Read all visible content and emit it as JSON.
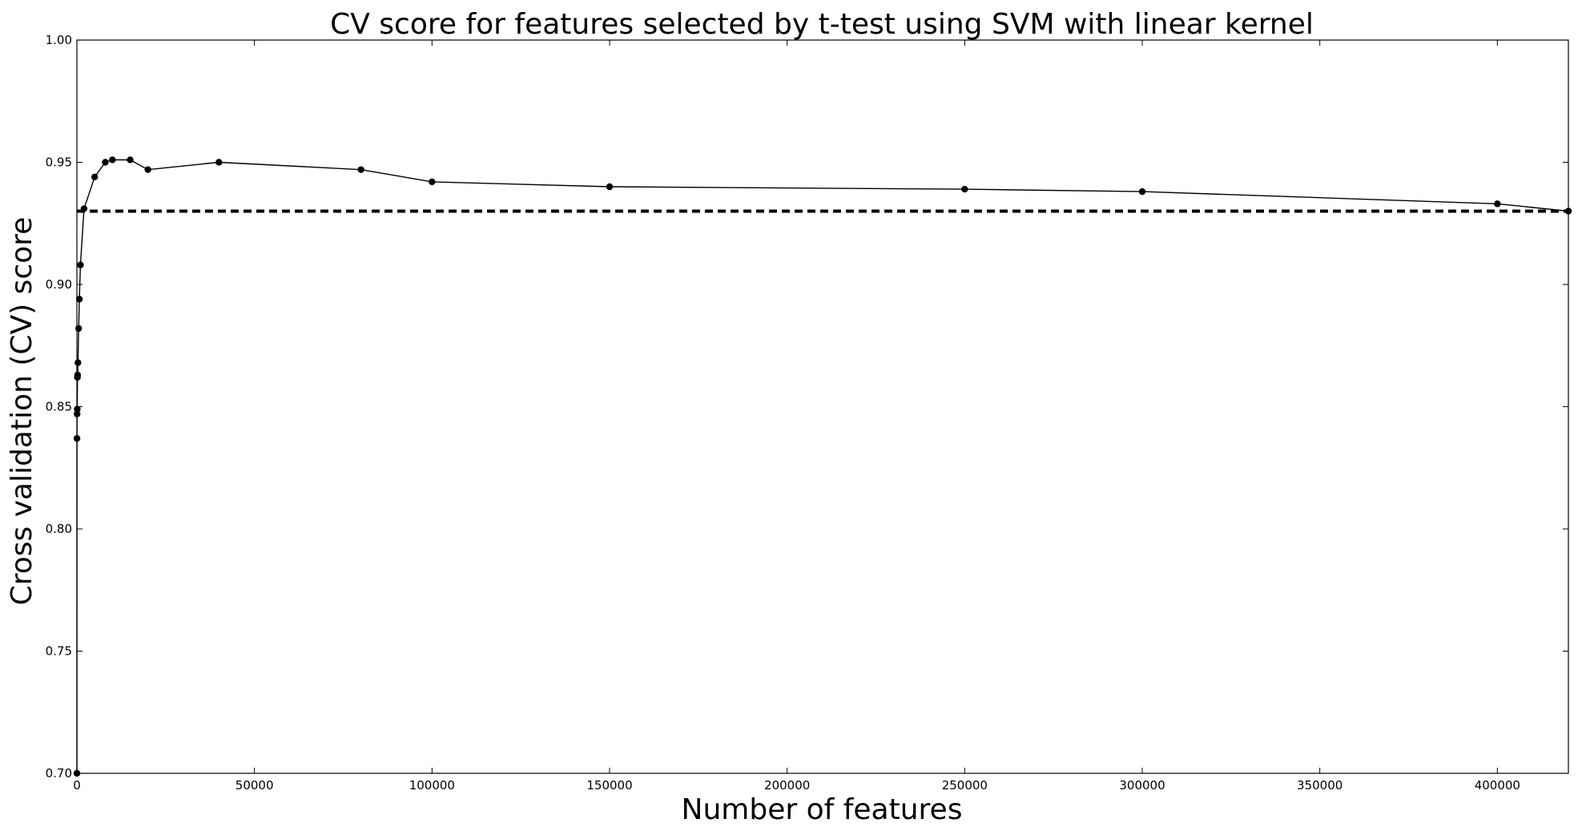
{
  "chart_data": {
    "type": "line",
    "title": "CV score for features selected by t-test using SVM with linear kernel",
    "xlabel": "Number of features",
    "ylabel": "Cross validation (CV) score",
    "xlim": [
      0,
      420000
    ],
    "ylim": [
      0.7,
      1.0
    ],
    "x_ticks": [
      0,
      50000,
      100000,
      150000,
      200000,
      250000,
      300000,
      350000,
      400000
    ],
    "x_tick_labels": [
      "0",
      "50000",
      "100000",
      "150000",
      "200000",
      "250000",
      "300000",
      "350000",
      "400000"
    ],
    "y_ticks": [
      0.7,
      0.75,
      0.8,
      0.85,
      0.9,
      0.95,
      1.0
    ],
    "y_tick_labels": [
      "0.70",
      "0.75",
      "0.80",
      "0.85",
      "0.90",
      "0.95",
      "1.00"
    ],
    "grid": false,
    "series": [
      {
        "color": "#000000",
        "marker": "circle",
        "x": [
          10,
          20,
          50,
          100,
          150,
          200,
          300,
          500,
          700,
          1000,
          2000,
          5000,
          8000,
          10000,
          15000,
          20000,
          40000,
          80000,
          100000,
          150000,
          250000,
          300000,
          400000,
          420000
        ],
        "y": [
          0.7,
          0.837,
          0.847,
          0.849,
          0.862,
          0.863,
          0.868,
          0.882,
          0.894,
          0.908,
          0.931,
          0.944,
          0.95,
          0.951,
          0.951,
          0.947,
          0.95,
          0.947,
          0.942,
          0.94,
          0.939,
          0.938,
          0.933,
          0.93
        ]
      }
    ],
    "reference_line": {
      "style": "dashed",
      "color": "#000000",
      "y": 0.93
    }
  }
}
